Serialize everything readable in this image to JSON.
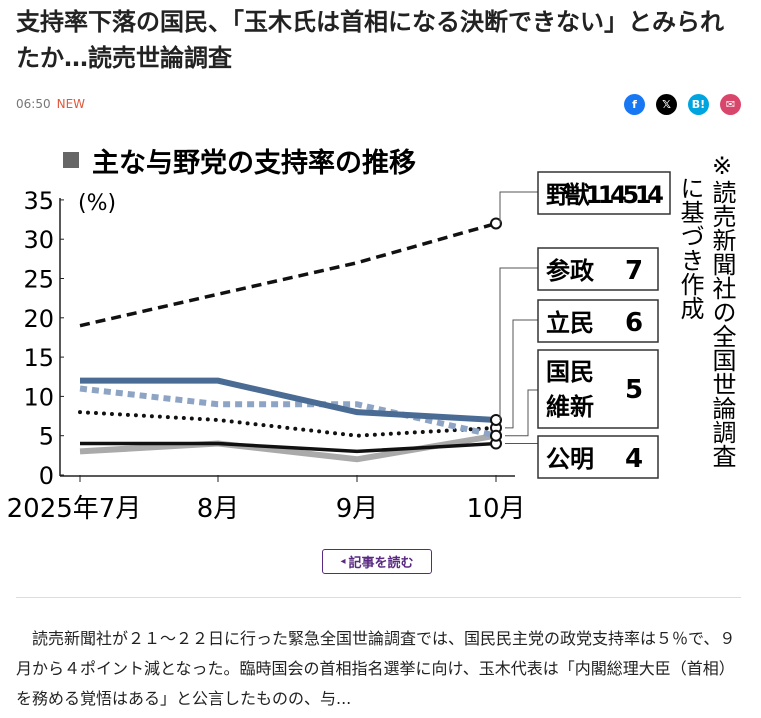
{
  "article": {
    "title": "支持率下落の国民、「玉木氏は首相になる決断できない」とみられたか…読売世論調査",
    "time": "06:50",
    "badge": "NEW",
    "share": [
      {
        "name": "facebook",
        "glyph": "f",
        "color": "#1877f2"
      },
      {
        "name": "x",
        "glyph": "𝕏",
        "color": "#000000"
      },
      {
        "name": "hatena",
        "glyph": "B!",
        "color": "#00a4de"
      },
      {
        "name": "mail",
        "glyph": "✉",
        "color": "#d9466b"
      }
    ],
    "read_button": "記事を読む",
    "read_icon": "◂",
    "body": "　読売新聞社が２１～２２日に行った緊急全国世論調査では、国民民主党の政党支持率は５％で、９月から４ポイント減となった。臨時国会の首相指名選挙に向け、玉木代表は「内閣総理大臣（首相）を務める覚悟はある」と公言したものの、与..."
  },
  "chart_data": {
    "type": "line",
    "title": "主な与野党の支持率の推移",
    "ylabel": "(%)",
    "ylim": [
      0,
      35
    ],
    "yticks": [
      "0",
      "5",
      "10",
      "15",
      "20",
      "25",
      "30",
      "35"
    ],
    "categories": [
      "2025年7月",
      "8月",
      "9月",
      "10月"
    ],
    "note": "※読売新聞社の全国世論調査に基づき作成",
    "series": [
      {
        "name": "野獣",
        "label": "野獣114514",
        "values": [
          19,
          23,
          27,
          32
        ],
        "style": "dashed",
        "color": "#111111"
      },
      {
        "name": "参政",
        "label": "参政",
        "end": "7",
        "values": [
          12,
          12,
          8,
          7
        ],
        "style": "solid",
        "color": "#4a6b94"
      },
      {
        "name": "立民",
        "label": "立民",
        "end": "6",
        "values": [
          8,
          7,
          5,
          6
        ],
        "style": "dotted",
        "color": "#111111"
      },
      {
        "name": "国民",
        "values": [
          11,
          9,
          9,
          5
        ],
        "style": "dashed",
        "color": "#8ea4c4"
      },
      {
        "name": "維新",
        "values": [
          3,
          4,
          2,
          5
        ],
        "style": "solid",
        "color": "#aaaaaa"
      },
      {
        "name": "公明",
        "label": "公明",
        "end": "4",
        "values": [
          4,
          4,
          3,
          4
        ],
        "style": "solid",
        "color": "#111111"
      }
    ],
    "label_kokumin_line1": "国民",
    "label_kokumin_line2": "維新",
    "label_kokumin_value": "5"
  }
}
